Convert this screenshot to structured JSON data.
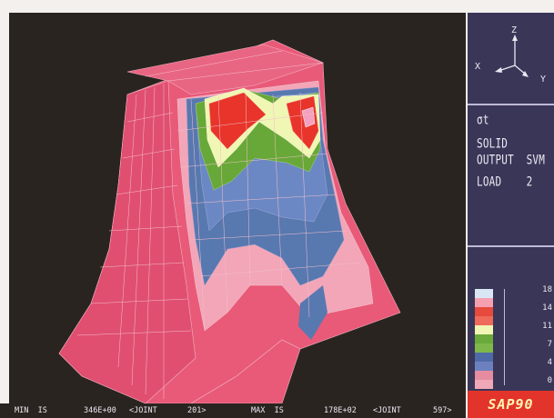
{
  "axis_triad": {
    "labels": [
      "Z",
      "X",
      "Y"
    ],
    "color": "#ece8f2"
  },
  "info": {
    "header": "σt",
    "lines": [
      "SOLID",
      "OUTPUT  SVM",
      "LOAD    2"
    ]
  },
  "legend": {
    "entries": [
      {
        "color": "#d9e6f4"
      },
      {
        "color": "#f4a0b0"
      },
      {
        "color": "#e64a3c"
      },
      {
        "color": "#ee6a5a"
      },
      {
        "color": "#f0f6b4"
      },
      {
        "color": "#6aaa3a"
      },
      {
        "color": "#7fb84a"
      },
      {
        "color": "#4f6aa8"
      },
      {
        "color": "#6c80c0"
      },
      {
        "color": "#e58ca0"
      },
      {
        "color": "#f0a8b8"
      }
    ],
    "values": [
      "18",
      "14",
      "11",
      "7",
      "4",
      "0"
    ]
  },
  "status": {
    "min_label": "MIN  IS",
    "min_value": "346E+00",
    "min_joint_label": "<JOINT",
    "min_joint": "201>",
    "max_label": "MAX  IS",
    "max_value": "178E+02",
    "max_joint_label": "<JOINT",
    "max_joint": "597>"
  },
  "brand": "SAP90",
  "colors": {
    "background": "#2a2420",
    "panel": "#3a3658",
    "mesh_pink": "#e85a78",
    "mesh_light_pink": "#f2a6b8",
    "contour_blue": "#5878b0",
    "contour_green": "#68a838",
    "contour_yellow": "#f0f6b4",
    "contour_red": "#e8342a",
    "badge": "#e2342a"
  }
}
